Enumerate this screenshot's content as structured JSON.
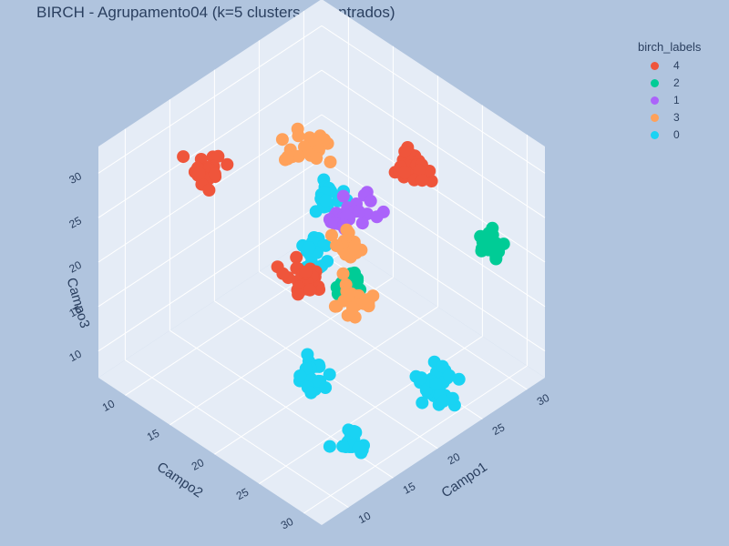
{
  "chart_data": {
    "type": "scatter3d",
    "title": "BIRCH - Agrupamento04 (k=5 clusters encontrados)",
    "axes": {
      "x": {
        "label": "Campo1",
        "ticks": [
          10,
          15,
          20,
          25,
          30
        ],
        "range": [
          7,
          32
        ]
      },
      "y": {
        "label": "Campo2",
        "ticks": [
          10,
          15,
          20,
          25,
          30
        ],
        "range": [
          7,
          32
        ]
      },
      "z": {
        "label": "Campo3",
        "ticks": [
          10,
          15,
          20,
          25,
          30
        ],
        "range": [
          7,
          33
        ]
      }
    },
    "legend": {
      "title": "birch_labels",
      "placement": "top-right",
      "entries": [
        "4",
        "2",
        "1",
        "3",
        "0"
      ]
    },
    "series": [
      {
        "name": "4",
        "color": "#ef553b",
        "clusters": [
          {
            "center": [
              11,
              26,
              28
            ],
            "spread": [
              1.5,
              1.5,
              1.3
            ],
            "n": 32
          },
          {
            "center": [
              25,
              24,
              30
            ],
            "spread": [
              1.5,
              1.5,
              1.3
            ],
            "n": 30
          },
          {
            "center": [
              15,
              11,
              28
            ],
            "spread": [
              1.5,
              1.5,
              1.3
            ],
            "n": 22
          }
        ]
      },
      {
        "name": "2",
        "color": "#00cc96",
        "clusters": [
          {
            "center": [
              29,
              29,
              22
            ],
            "spread": [
              0.9,
              0.9,
              0.9
            ],
            "n": 26
          },
          {
            "center": [
              26,
              16,
              11
            ],
            "spread": [
              1.0,
              1.0,
              1.0
            ],
            "n": 26
          }
        ]
      },
      {
        "name": "1",
        "color": "#ab63fa",
        "clusters": [
          {
            "center": [
              21,
              20,
              24
            ],
            "spread": [
              0.7,
              0.7,
              0.7
            ],
            "n": 24
          },
          {
            "center": [
              26,
              17,
              20
            ],
            "spread": [
              2.0,
              2.0,
              1.5
            ],
            "n": 16
          }
        ]
      },
      {
        "name": "3",
        "color": "#ffa15a",
        "clusters": [
          {
            "center": [
              14,
              28,
              31
            ],
            "spread": [
              1.5,
              1.5,
              1.3
            ],
            "n": 20
          },
          {
            "center": [
              14,
              28,
              25
            ],
            "spread": [
              1.8,
              1.5,
              1.5
            ],
            "n": 22
          },
          {
            "center": [
              19,
              18,
              32
            ],
            "spread": [
              2.5,
              1.8,
              1.0
            ],
            "n": 24
          }
        ]
      },
      {
        "name": "0",
        "color": "#19d3f3",
        "clusters": [
          {
            "center": [
              29,
              9,
              8
            ],
            "spread": [
              1.5,
              1.3,
              1.3
            ],
            "n": 20
          },
          {
            "center": [
              30,
              10,
              14
            ],
            "spread": [
              1.5,
              1.3,
              1.5
            ],
            "n": 20
          },
          {
            "center": [
              14,
              28,
              9
            ],
            "spread": [
              1.2,
              1.2,
              1.5
            ],
            "n": 22
          },
          {
            "center": [
              24,
              28,
              9
            ],
            "spread": [
              1.5,
              1.5,
              1.8
            ],
            "n": 30
          },
          {
            "center": [
              17,
              21,
              10
            ],
            "spread": [
              1.5,
              1.5,
              1.5
            ],
            "n": 20
          }
        ]
      }
    ]
  }
}
